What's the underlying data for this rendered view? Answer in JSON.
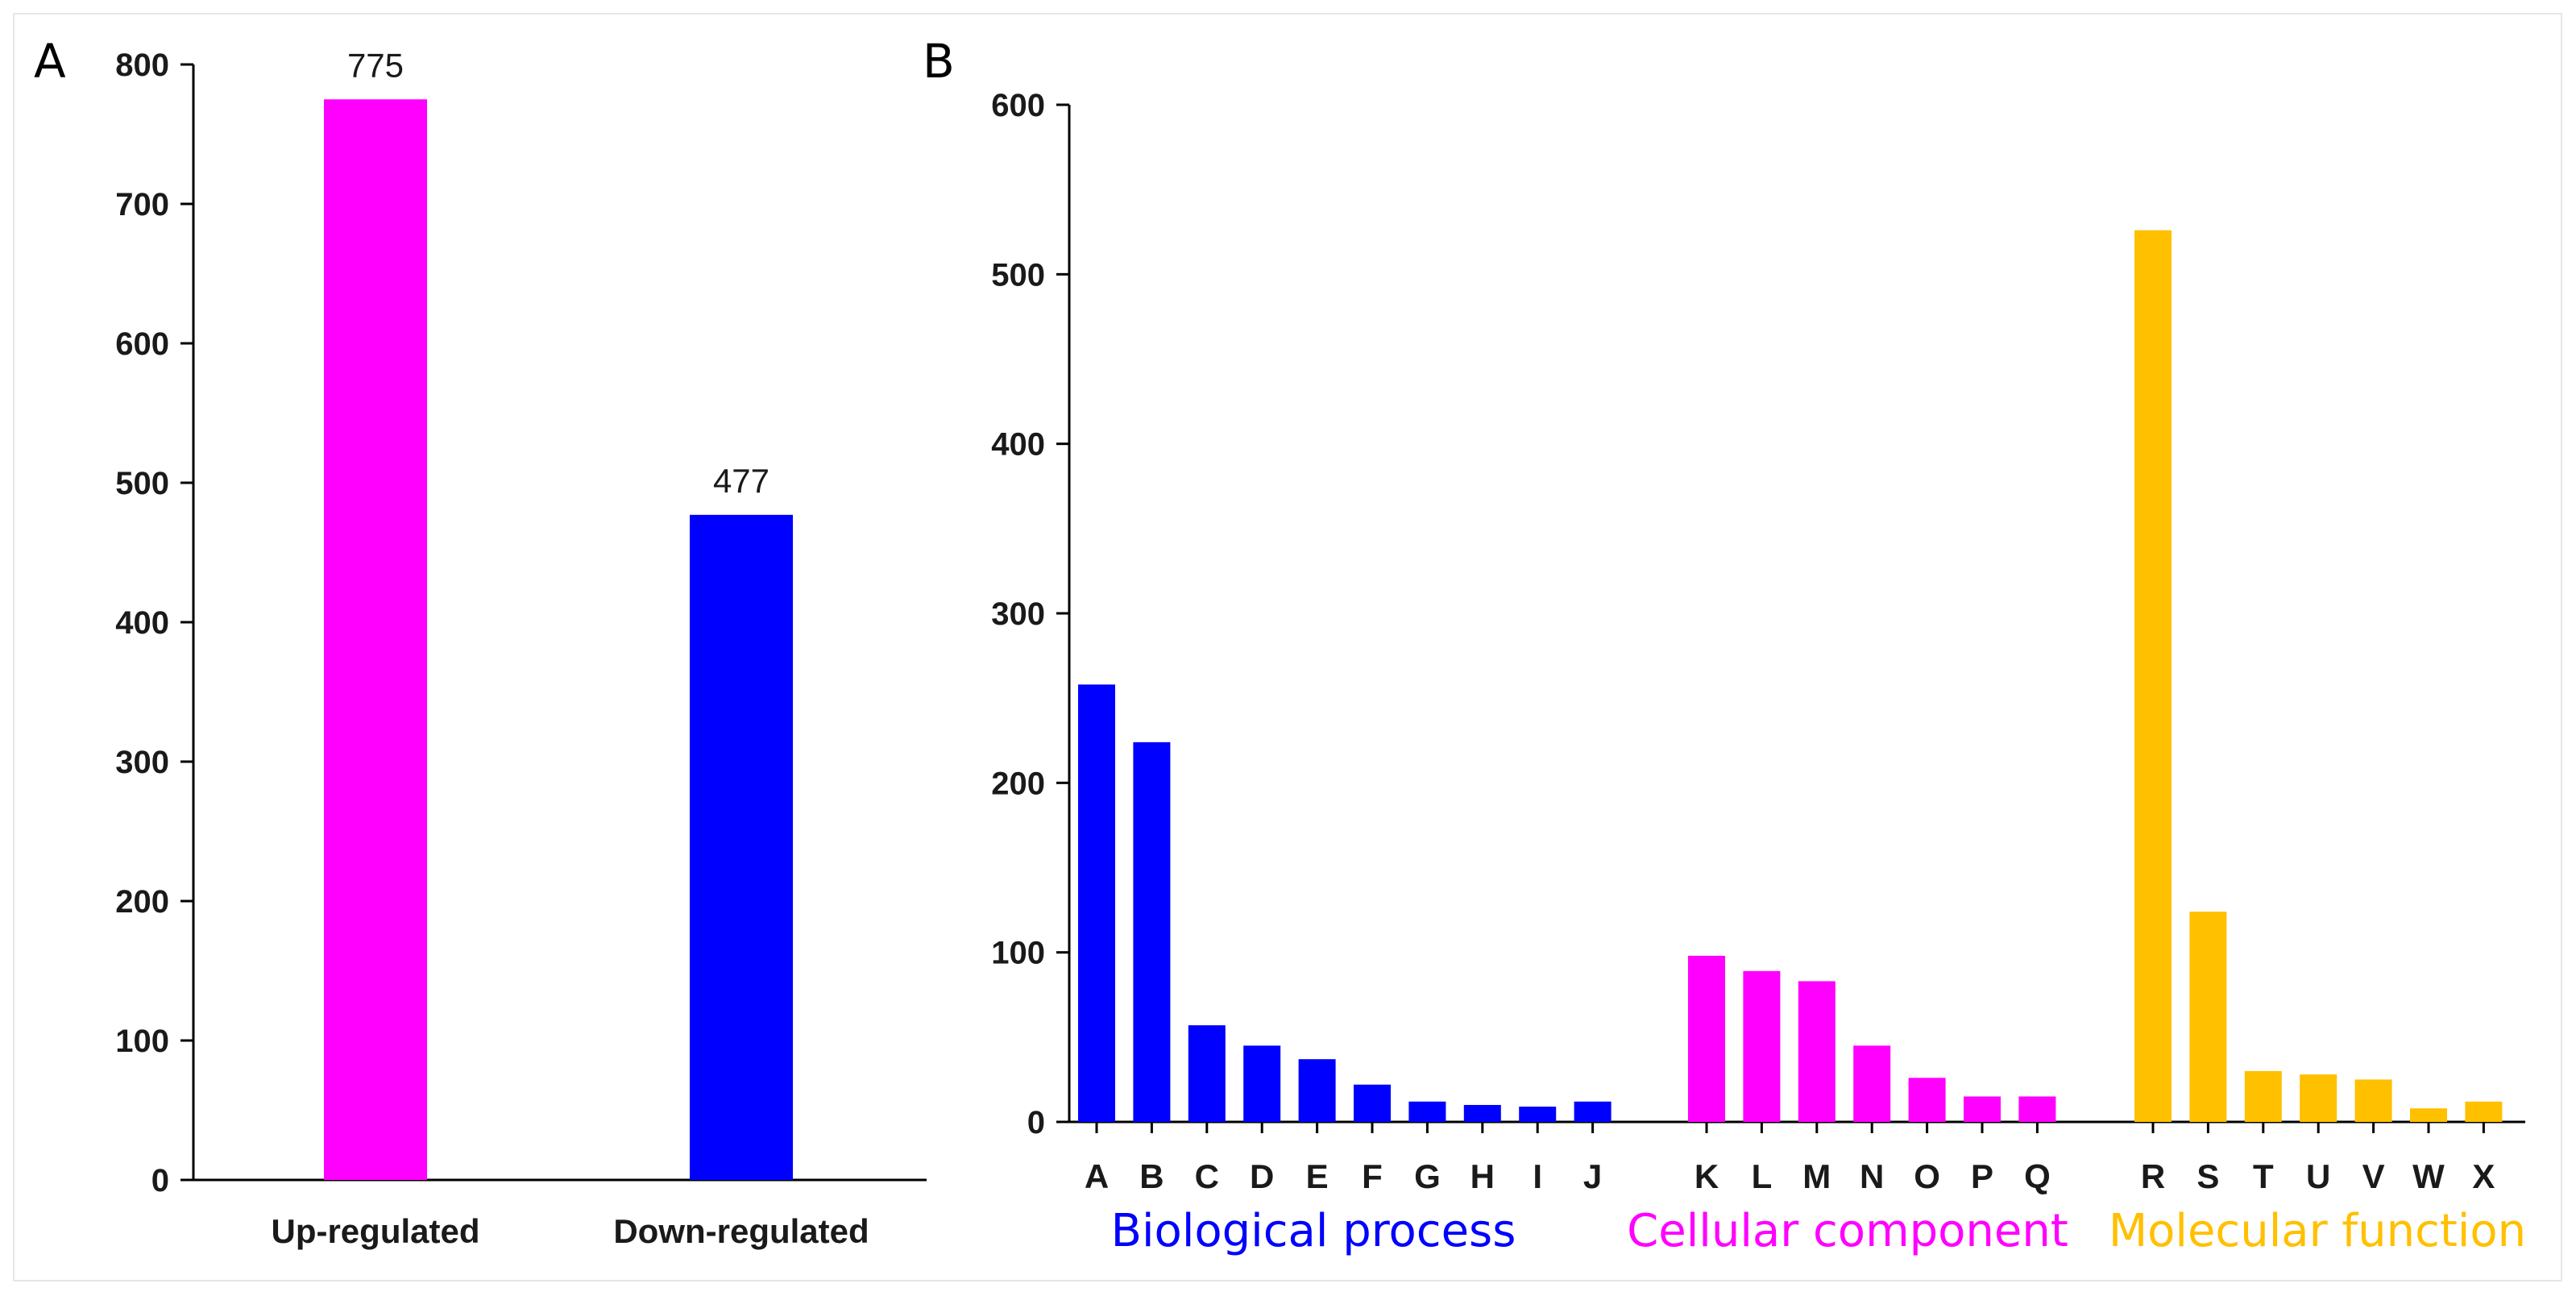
{
  "colors": {
    "pink": "#ff00ff",
    "blue": "#0000ff",
    "gold": "#ffc000"
  },
  "chart_data": [
    {
      "panel": "A",
      "type": "bar",
      "categories": [
        "Up-regulated",
        "Down-regulated"
      ],
      "values": [
        775,
        477
      ],
      "data_labels": [
        "775",
        "477"
      ],
      "bar_colors": [
        "pink",
        "blue"
      ],
      "ylim": [
        0,
        800
      ],
      "yticks": [
        0,
        100,
        200,
        300,
        400,
        500,
        600,
        700,
        800
      ],
      "xlabel": "",
      "ylabel": ""
    },
    {
      "panel": "B",
      "type": "bar",
      "ylim": [
        0,
        600
      ],
      "yticks": [
        0,
        100,
        200,
        300,
        400,
        500,
        600
      ],
      "xlabel": "",
      "ylabel": "",
      "groups": [
        {
          "name": "Biological process",
          "color": "blue",
          "categories": [
            "A",
            "B",
            "C",
            "D",
            "E",
            "F",
            "G",
            "H",
            "I",
            "J"
          ],
          "values": [
            258,
            224,
            57,
            45,
            37,
            22,
            12,
            10,
            9,
            12
          ]
        },
        {
          "name": "Cellular component",
          "color": "pink",
          "categories": [
            "K",
            "L",
            "M",
            "N",
            "O",
            "P",
            "Q"
          ],
          "values": [
            98,
            89,
            83,
            45,
            26,
            15,
            15
          ]
        },
        {
          "name": "Molecular function",
          "color": "gold",
          "categories": [
            "R",
            "S",
            "T",
            "U",
            "V",
            "W",
            "X"
          ],
          "values": [
            526,
            124,
            30,
            28,
            25,
            8,
            12
          ]
        }
      ]
    }
  ]
}
